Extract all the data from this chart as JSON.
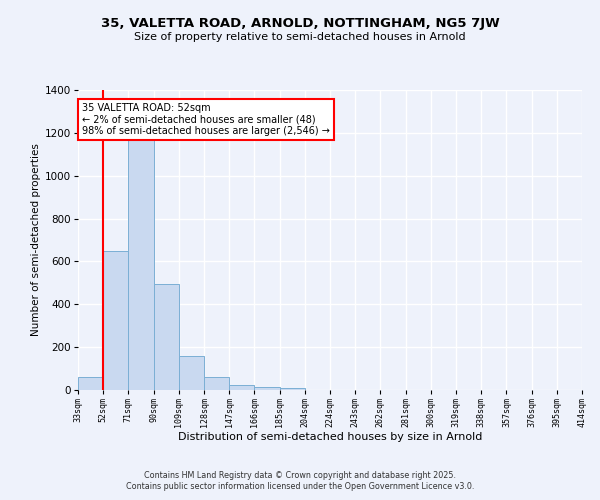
{
  "title_main": "35, VALETTA ROAD, ARNOLD, NOTTINGHAM, NG5 7JW",
  "title_sub": "Size of property relative to semi-detached houses in Arnold",
  "xlabel": "Distribution of semi-detached houses by size in Arnold",
  "ylabel": "Number of semi-detached properties",
  "bar_values": [
    60,
    650,
    1165,
    495,
    160,
    60,
    25,
    15,
    10,
    0,
    0,
    0,
    0,
    0,
    0,
    0,
    0,
    0,
    0,
    0
  ],
  "bin_labels": [
    "33sqm",
    "52sqm",
    "71sqm",
    "90sqm",
    "109sqm",
    "128sqm",
    "147sqm",
    "166sqm",
    "185sqm",
    "204sqm",
    "224sqm",
    "243sqm",
    "262sqm",
    "281sqm",
    "300sqm",
    "319sqm",
    "338sqm",
    "357sqm",
    "376sqm",
    "395sqm",
    "414sqm"
  ],
  "bar_color": "#c9d9f0",
  "bar_edge_color": "#7bafd4",
  "ylim": [
    0,
    1400
  ],
  "yticks": [
    0,
    200,
    400,
    600,
    800,
    1000,
    1200,
    1400
  ],
  "red_line_x": 1,
  "annotation_text": "35 VALETTA ROAD: 52sqm\n← 2% of semi-detached houses are smaller (48)\n98% of semi-detached houses are larger (2,546) →",
  "annotation_box_color": "white",
  "annotation_box_edge_color": "red",
  "footer_line1": "Contains HM Land Registry data © Crown copyright and database right 2025.",
  "footer_line2": "Contains public sector information licensed under the Open Government Licence v3.0.",
  "background_color": "#eef2fb",
  "grid_color": "white"
}
